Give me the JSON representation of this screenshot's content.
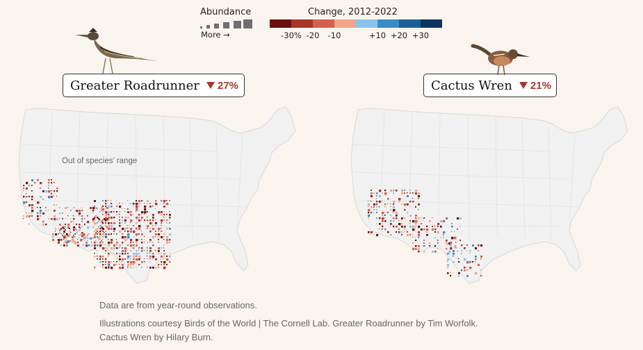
{
  "legend": {
    "abundance_title": "Abundance",
    "more_label": "More →",
    "change_title": "Change, 2012-2022",
    "change_colors": [
      "#6b0f0f",
      "#a8352a",
      "#d2604e",
      "#f2a58a",
      "#88c4ec",
      "#3a8cc6",
      "#1b5f97",
      "#0c355f"
    ],
    "change_ticks": [
      "-30%",
      "-20",
      "-10",
      "+10",
      "+20",
      "+30"
    ]
  },
  "birds": [
    {
      "name": "Greater Roadrunner",
      "change": "27%",
      "icon": "roadrunner-illustration"
    },
    {
      "name": "Cactus Wren",
      "change": "21%",
      "icon": "cactus-wren-illustration"
    }
  ],
  "map": {
    "out_of_range_label": "Out of species’ range",
    "land_color": "#f1f1f1",
    "border_color": "#d8d8d8",
    "decline_color": "#b0392c",
    "increase_color": "#5aa3d6"
  },
  "notes": {
    "line1": "Data are from year-round observations.",
    "line2": "Illustrations courtesy Birds of the World | The Cornell Lab. Greater Roadrunner by Tim Worfolk.",
    "line3": "Cactus Wren by Hilary Burn."
  }
}
